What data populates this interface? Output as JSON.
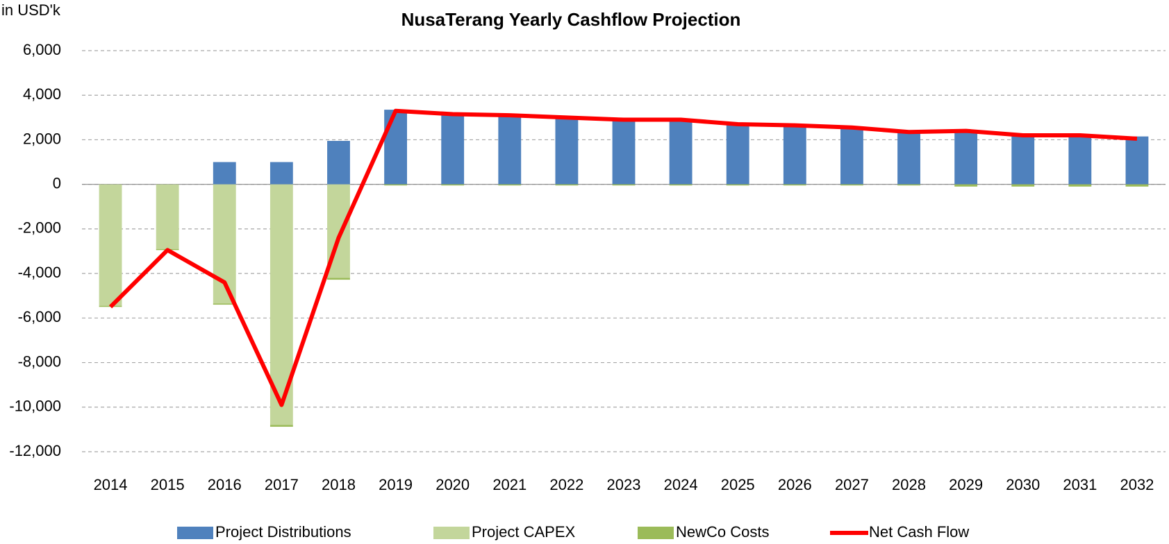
{
  "chart_data": {
    "type": "bar",
    "stacked": true,
    "title": "NusaTerang Yearly Cashflow Projection",
    "y_unit_label": "in USD'k",
    "categories": [
      "2014",
      "2015",
      "2016",
      "2017",
      "2018",
      "2019",
      "2020",
      "2021",
      "2022",
      "2023",
      "2024",
      "2025",
      "2026",
      "2027",
      "2028",
      "2029",
      "2030",
      "2031",
      "2032"
    ],
    "series": [
      {
        "name": "Project Distributions",
        "color": "#4f81bd",
        "type": "bar",
        "values": [
          0,
          0,
          1000,
          1000,
          1950,
          3350,
          3200,
          3100,
          3000,
          2900,
          2900,
          2700,
          2650,
          2550,
          2400,
          2450,
          2250,
          2250,
          2150
        ]
      },
      {
        "name": "Project CAPEX",
        "color": "#c3d69b",
        "type": "bar",
        "values": [
          -5450,
          -2900,
          -5350,
          -10800,
          -4200,
          0,
          0,
          0,
          0,
          0,
          0,
          0,
          0,
          0,
          0,
          0,
          0,
          0,
          0
        ]
      },
      {
        "name": "NewCo Costs",
        "color": "#9bbb59",
        "type": "bar",
        "values": [
          -50,
          -50,
          -50,
          -80,
          -80,
          -50,
          -50,
          -50,
          -50,
          -50,
          -50,
          -50,
          -50,
          -50,
          -50,
          -100,
          -100,
          -100,
          -100
        ]
      },
      {
        "name": "Net Cash Flow",
        "color": "#ff0000",
        "type": "line",
        "values": [
          -5500,
          -2950,
          -4400,
          -9900,
          -2400,
          3300,
          3150,
          3100,
          3000,
          2900,
          2900,
          2700,
          2650,
          2550,
          2350,
          2400,
          2200,
          2200,
          2050
        ]
      }
    ],
    "ylim": [
      -12000,
      6000
    ],
    "yticks": [
      {
        "value": -12000,
        "label": "-12,000"
      },
      {
        "value": -10000,
        "label": "-10,000"
      },
      {
        "value": -8000,
        "label": "-8,000"
      },
      {
        "value": -6000,
        "label": "-6,000"
      },
      {
        "value": -4000,
        "label": "-4,000"
      },
      {
        "value": -2000,
        "label": "-2,000"
      },
      0,
      {
        "value": 2000,
        "label": "2,000"
      },
      {
        "value": 4000,
        "label": "4,000"
      },
      {
        "value": 6000,
        "label": "6,000"
      }
    ],
    "grid": true,
    "legend": "bottom"
  }
}
